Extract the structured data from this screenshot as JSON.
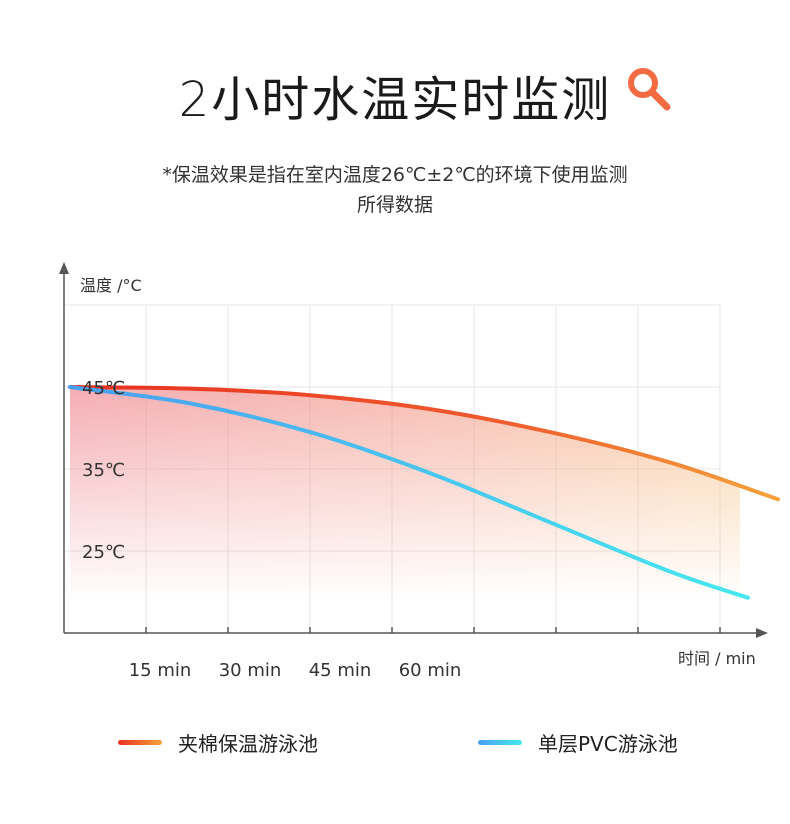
{
  "header": {
    "title": "2小时水温实时监测",
    "note_line1": "*保温效果是指在室内温度26℃±2℃的环境下使用监测",
    "note_line2": "所得数据",
    "icon": "search-icon",
    "icon_color": "#f26b43"
  },
  "chart_data": {
    "type": "line",
    "ylabel": "温度 /°C",
    "xlabel": "时间 / min",
    "y_ticks": [
      "45℃",
      "35℃",
      "25℃"
    ],
    "y_tick_values": [
      45,
      35,
      25
    ],
    "x_ticks": [
      "15 min",
      "30 min",
      "45 min",
      "60 min"
    ],
    "x_tick_values": [
      15,
      30,
      45,
      60
    ],
    "xlim": [
      0,
      120
    ],
    "ylim": [
      15,
      55
    ],
    "grid": true,
    "series": [
      {
        "name": "夹棉保温游泳池",
        "color_start": "#e8301f",
        "color_end": "#f5a23a",
        "x": [
          0,
          20,
          40,
          60,
          80,
          100,
          118
        ],
        "y": [
          45,
          44.8,
          44,
          42.3,
          39.5,
          35.8,
          31.3
        ]
      },
      {
        "name": "单层PVC游泳池",
        "color_start": "#4a9ff0",
        "color_end": "#45e8ee",
        "x": [
          0,
          20,
          40,
          60,
          80,
          100,
          113
        ],
        "y": [
          45,
          43,
          39.5,
          34.5,
          28.5,
          22.5,
          19.3
        ]
      }
    ]
  }
}
